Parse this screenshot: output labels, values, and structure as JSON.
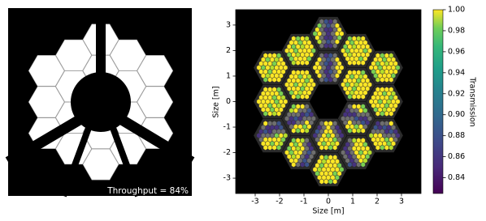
{
  "chart_data": {
    "type": "heatmap",
    "annotations": [
      "Throughput = 84%"
    ],
    "xlabel": "Size [m]",
    "ylabel": "Size [m]",
    "xlim": [
      -3.8,
      3.8
    ],
    "ylim": [
      -3.6,
      3.6
    ],
    "xticks": [
      -3,
      -2,
      -1,
      0,
      1,
      2,
      3
    ],
    "yticks": [
      -3,
      -2,
      -1,
      0,
      1,
      2,
      3
    ],
    "colorbar": {
      "label": "Transmission",
      "colormap": "viridis",
      "lim": [
        0.825,
        1.0
      ],
      "ticks": [
        0.84,
        0.86,
        0.88,
        {
          "value": 0.9,
          "label": "0.90"
        },
        0.92,
        0.94,
        0.96,
        0.98,
        {
          "value": 1,
          "label": "1.00"
        }
      ]
    }
  }
}
